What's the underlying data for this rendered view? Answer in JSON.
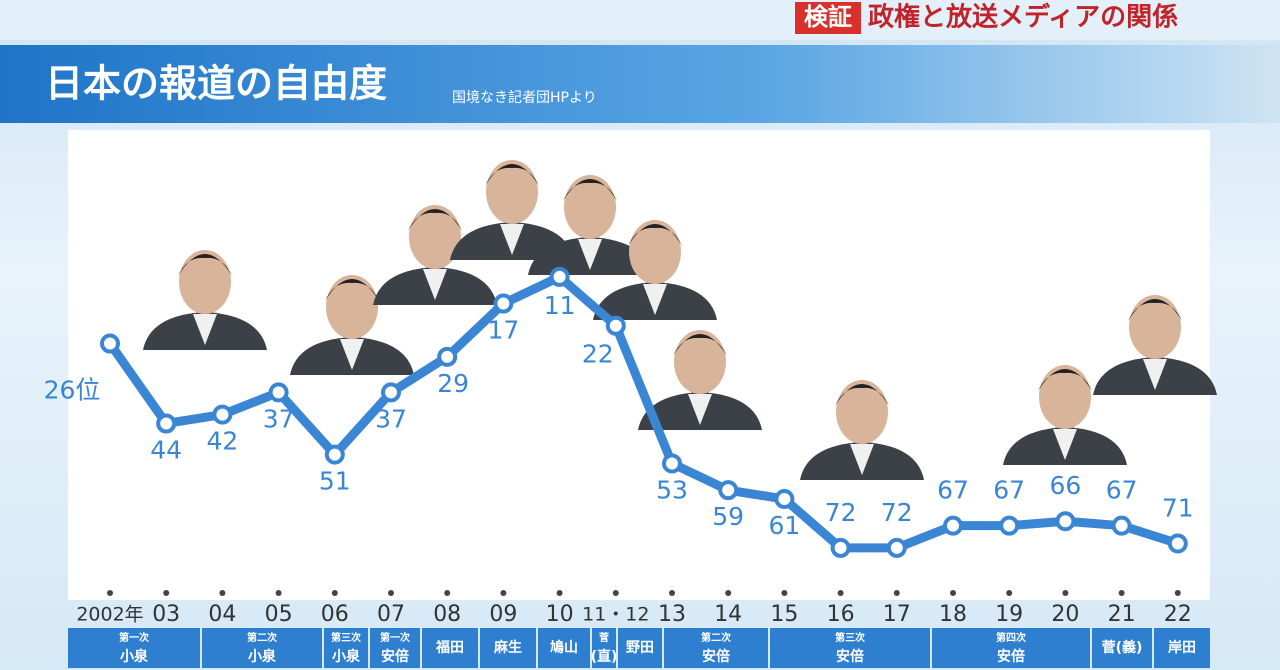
{
  "header": {
    "badge": "検証",
    "title": "政権と放送メディアの関係"
  },
  "chart_data": {
    "type": "line",
    "title": "日本の報道の自由度",
    "subtitle": "国境なき記者団HPより",
    "categories": [
      "2002年",
      "03",
      "04",
      "05",
      "06",
      "07",
      "08",
      "09",
      "10",
      "11・12",
      "13",
      "14",
      "15",
      "16",
      "17",
      "18",
      "19",
      "20",
      "21",
      "22"
    ],
    "values": [
      26,
      44,
      42,
      37,
      51,
      37,
      29,
      17,
      11,
      22,
      53,
      59,
      61,
      72,
      72,
      67,
      67,
      66,
      67,
      71
    ],
    "value_labels": [
      "26位",
      "44",
      "42",
      "37",
      "51",
      "37",
      "29",
      "17",
      "11",
      "22",
      "53",
      "59",
      "61",
      "72",
      "72",
      "67",
      "67",
      "66",
      "67",
      "71"
    ],
    "color": "#3a86d4",
    "periods": [
      [
        "第一次",
        "小泉"
      ],
      [
        "第二次",
        "小泉"
      ],
      [
        "第三次",
        "小泉"
      ],
      [
        "第一次",
        "安倍"
      ],
      [
        "福田"
      ],
      [
        "麻生"
      ],
      [
        "鳩山"
      ],
      [
        "菅",
        "(直)"
      ],
      [
        "野田"
      ],
      [
        "第二次",
        "安倍"
      ],
      [
        "第三次",
        "安倍"
      ],
      [
        "第四次",
        "安倍"
      ],
      [
        "菅(義)"
      ],
      [
        "岸田"
      ]
    ]
  }
}
